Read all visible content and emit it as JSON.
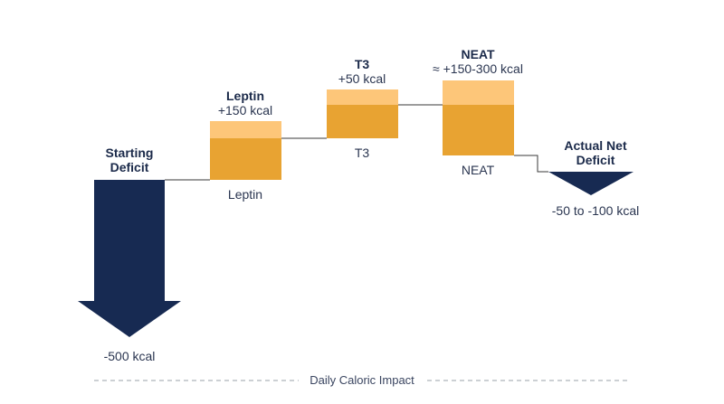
{
  "colors": {
    "deficit": "#172a52",
    "bar_main": "#e8a332",
    "bar_top": "#fdc679",
    "connector": "#3a3a3a",
    "axis": "#9aa0aa"
  },
  "axis_label": "Daily Caloric Impact",
  "start": {
    "title_line1": "Starting",
    "title_line2": "Deficit",
    "value": "-500 kcal"
  },
  "leptin": {
    "title": "Leptin",
    "value": "+150 kcal",
    "below": "Leptin"
  },
  "t3": {
    "title": "T3",
    "value": "+50 kcal",
    "below": "T3"
  },
  "neat": {
    "title": "NEAT",
    "value": "≈ +150-300 kcal",
    "below": "NEAT"
  },
  "net": {
    "title_line1": "Actual Net",
    "title_line2": "Deficit",
    "value": "-50 to -100 kcal"
  }
}
